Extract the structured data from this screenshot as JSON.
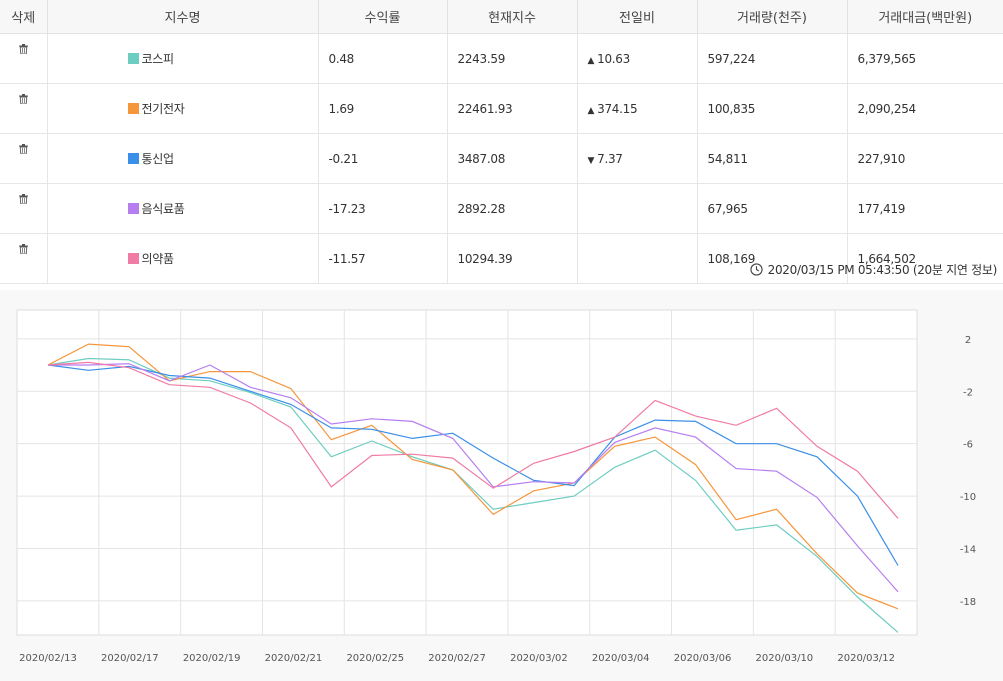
{
  "table": {
    "headers": [
      "삭제",
      "지수명",
      "수익률",
      "현재지수",
      "전일비",
      "거래량(천주)",
      "거래대금(백만원)"
    ],
    "rows": [
      {
        "name": "코스피",
        "color": "#6ecdc1",
        "return": "0.48",
        "current": "2243.59",
        "change_dir": "up",
        "change": "10.63",
        "volume": "597,224",
        "amount": "6,379,565"
      },
      {
        "name": "전기전자",
        "color": "#f6963c",
        "return": "1.69",
        "current": "22461.93",
        "change_dir": "up",
        "change": "374.15",
        "volume": "100,835",
        "amount": "2,090,254"
      },
      {
        "name": "통신업",
        "color": "#3a8fe8",
        "return": "-0.21",
        "current": "3487.08",
        "change_dir": "down",
        "change": "7.37",
        "volume": "54,811",
        "amount": "227,910"
      },
      {
        "name": "음식료품",
        "color": "#b77ef0",
        "return": "-17.23",
        "current": "2892.28",
        "change_dir": "",
        "change": "",
        "volume": "67,965",
        "amount": "177,419"
      },
      {
        "name": "의약품",
        "color": "#f07ba5",
        "return": "-11.57",
        "current": "10294.39",
        "change_dir": "",
        "change": "",
        "volume": "108,169",
        "amount": "1,664,502"
      }
    ]
  },
  "timestamp": "2020/03/15 PM 05:43:50 (20분 지연 정보)",
  "icons": {
    "delete": "trash-icon",
    "time": "clock-icon"
  },
  "chart_data": {
    "type": "line",
    "x_labels": [
      "2020/02/13",
      "2020/02/17",
      "2020/02/19",
      "2020/02/21",
      "2020/02/25",
      "2020/02/27",
      "2020/03/02",
      "2020/03/04",
      "2020/03/06",
      "2020/03/10",
      "2020/03/12"
    ],
    "y_ticks": [
      2,
      -2,
      -6,
      -10,
      -14,
      -18
    ],
    "ylim": [
      -20.6,
      4.2
    ],
    "grid": true,
    "series": [
      {
        "name": "코스피",
        "color": "#6ecdc1",
        "values": [
          0,
          0.5,
          0.4,
          -1,
          -1.2,
          -2.1,
          -3.2,
          -7,
          -5.8,
          -7,
          -8,
          -11,
          -10.5,
          -10,
          -7.8,
          -6.5,
          -8.8,
          -12.6,
          -12.2,
          -14.6,
          -17.7,
          -20.4
        ]
      },
      {
        "name": "전기전자",
        "color": "#f6963c",
        "values": [
          0,
          1.6,
          1.4,
          -1.2,
          -0.5,
          -0.5,
          -1.8,
          -5.7,
          -4.6,
          -7.2,
          -8,
          -11.4,
          -9.6,
          -9,
          -6.2,
          -5.5,
          -7.6,
          -11.8,
          -11,
          -14.4,
          -17.4,
          -18.6
        ]
      },
      {
        "name": "통신업",
        "color": "#3a8fe8",
        "values": [
          0,
          -0.4,
          -0.1,
          -0.8,
          -1,
          -2,
          -3,
          -4.8,
          -4.9,
          -5.6,
          -5.2,
          -7.1,
          -8.8,
          -9.2,
          -5.5,
          -4.2,
          -4.3,
          -6,
          -6,
          -7,
          -10,
          -15.3
        ]
      },
      {
        "name": "음식료품",
        "color": "#b77ef0",
        "values": [
          0,
          0,
          0.1,
          -1.2,
          0,
          -1.7,
          -2.5,
          -4.5,
          -4.1,
          -4.3,
          -5.6,
          -9.3,
          -8.9,
          -9,
          -5.9,
          -4.8,
          -5.5,
          -7.9,
          -8.1,
          -10.1,
          -13.8,
          -17.3
        ]
      },
      {
        "name": "의약품",
        "color": "#f07ba5",
        "values": [
          0,
          0.2,
          -0.2,
          -1.5,
          -1.7,
          -2.9,
          -4.8,
          -9.3,
          -6.9,
          -6.8,
          -7.1,
          -9.4,
          -7.5,
          -6.6,
          -5.5,
          -2.7,
          -3.9,
          -4.6,
          -3.3,
          -6.2,
          -8.1,
          -11.7
        ]
      }
    ]
  }
}
